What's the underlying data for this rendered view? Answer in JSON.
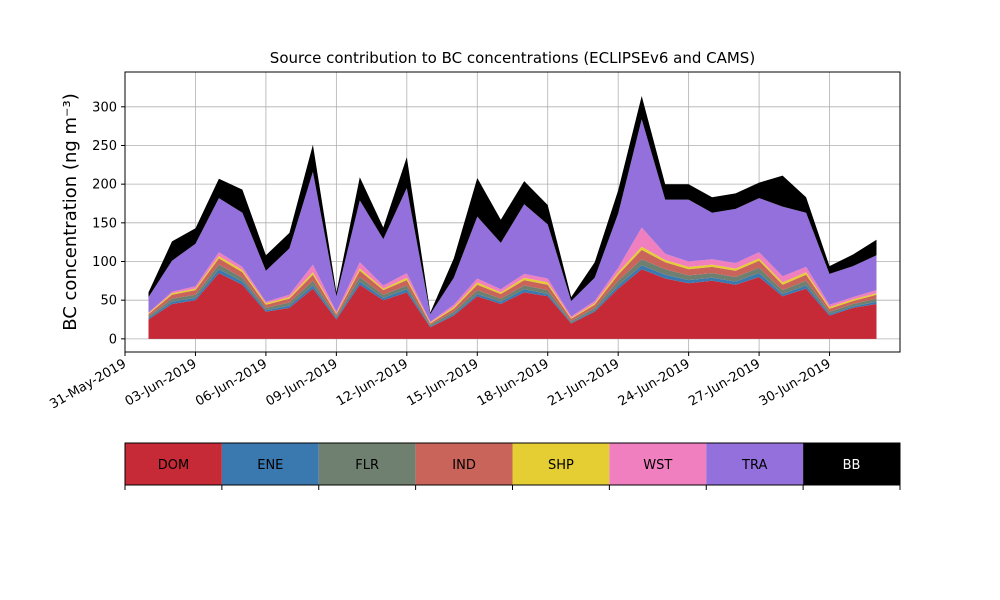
{
  "chart_data": {
    "type": "area",
    "title": "Source contribution to BC concentrations (ECLIPSEv6 and CAMS)",
    "ylabel": "BC concentration (ng m⁻³)",
    "xlabel": "",
    "ylim": [
      -17,
      345
    ],
    "xlim": [
      "2019-05-31",
      "2019-07-03"
    ],
    "grid": true,
    "y_ticks": [
      0,
      50,
      100,
      150,
      200,
      250,
      300
    ],
    "x_ticks": [
      "31-May-2019",
      "03-Jun-2019",
      "06-Jun-2019",
      "09-Jun-2019",
      "12-Jun-2019",
      "15-Jun-2019",
      "18-Jun-2019",
      "21-Jun-2019",
      "24-Jun-2019",
      "27-Jun-2019",
      "30-Jun-2019"
    ],
    "x": [
      "2019-06-01",
      "2019-06-02",
      "2019-06-03",
      "2019-06-04",
      "2019-06-05",
      "2019-06-06",
      "2019-06-07",
      "2019-06-08",
      "2019-06-09",
      "2019-06-10",
      "2019-06-11",
      "2019-06-12",
      "2019-06-13",
      "2019-06-14",
      "2019-06-15",
      "2019-06-16",
      "2019-06-17",
      "2019-06-18",
      "2019-06-19",
      "2019-06-20",
      "2019-06-21",
      "2019-06-22",
      "2019-06-23",
      "2019-06-24",
      "2019-06-25",
      "2019-06-26",
      "2019-06-27",
      "2019-06-28",
      "2019-06-29",
      "2019-06-30",
      "2019-07-01",
      "2019-07-02"
    ],
    "stacked": true,
    "series": [
      {
        "name": "DOM",
        "color": "#c52a36",
        "values": [
          25,
          45,
          50,
          85,
          70,
          35,
          40,
          65,
          25,
          70,
          50,
          60,
          15,
          30,
          55,
          45,
          60,
          55,
          20,
          35,
          65,
          90,
          78,
          72,
          75,
          70,
          80,
          55,
          65,
          30,
          40,
          45
        ]
      },
      {
        "name": "ENE",
        "color": "#3a78b0",
        "values": [
          2,
          3,
          3,
          5,
          4,
          2,
          3,
          4,
          2,
          4,
          3,
          4,
          1,
          2,
          3,
          3,
          4,
          3,
          1,
          2,
          4,
          5,
          5,
          4,
          4,
          4,
          5,
          3,
          4,
          2,
          2,
          3
        ]
      },
      {
        "name": "FLR",
        "color": "#6f8070",
        "values": [
          2,
          4,
          4,
          6,
          5,
          3,
          4,
          6,
          2,
          6,
          4,
          5,
          2,
          3,
          5,
          4,
          5,
          5,
          2,
          3,
          6,
          8,
          7,
          6,
          6,
          6,
          7,
          5,
          6,
          3,
          3,
          4
        ]
      },
      {
        "name": "IND",
        "color": "#c9645a",
        "values": [
          3,
          5,
          6,
          8,
          7,
          4,
          5,
          8,
          3,
          8,
          6,
          7,
          2,
          4,
          7,
          6,
          7,
          7,
          3,
          4,
          8,
          12,
          9,
          8,
          8,
          8,
          9,
          7,
          8,
          4,
          4,
          5
        ]
      },
      {
        "name": "SHP",
        "color": "#e4ce34",
        "values": [
          1,
          2,
          2,
          3,
          3,
          2,
          2,
          3,
          1,
          3,
          2,
          3,
          1,
          2,
          3,
          2,
          3,
          3,
          1,
          2,
          3,
          4,
          3,
          3,
          3,
          3,
          3,
          3,
          3,
          2,
          2,
          2
        ]
      },
      {
        "name": "WST",
        "color": "#f07fbf",
        "values": [
          1,
          2,
          3,
          5,
          4,
          2,
          3,
          10,
          2,
          8,
          4,
          6,
          1,
          3,
          5,
          4,
          5,
          5,
          2,
          3,
          6,
          25,
          8,
          7,
          7,
          7,
          8,
          8,
          7,
          3,
          3,
          4
        ]
      },
      {
        "name": "TRA",
        "color": "#9370db",
        "values": [
          20,
          40,
          55,
          70,
          70,
          40,
          60,
          120,
          20,
          80,
          60,
          110,
          10,
          35,
          80,
          60,
          90,
          70,
          20,
          30,
          70,
          140,
          70,
          80,
          60,
          70,
          70,
          90,
          70,
          40,
          40,
          45
        ]
      },
      {
        "name": "BB",
        "color": "#000000",
        "values": [
          6,
          25,
          20,
          25,
          30,
          20,
          20,
          35,
          5,
          30,
          15,
          40,
          2,
          25,
          50,
          30,
          30,
          25,
          5,
          20,
          30,
          30,
          20,
          20,
          20,
          20,
          20,
          40,
          20,
          10,
          15,
          20
        ]
      }
    ],
    "legend": {
      "placement": "bottom",
      "entries": [
        "DOM",
        "ENE",
        "FLR",
        "IND",
        "SHP",
        "WST",
        "TRA",
        "BB"
      ],
      "text_colors": [
        "#000000",
        "#000000",
        "#000000",
        "#000000",
        "#000000",
        "#000000",
        "#000000",
        "#ffffff"
      ]
    }
  }
}
